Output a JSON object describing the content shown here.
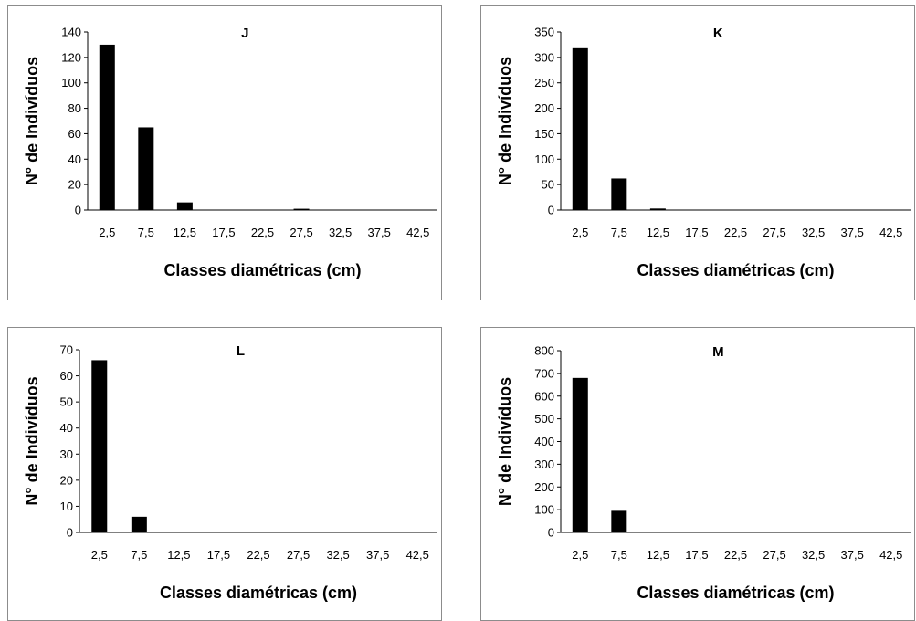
{
  "chart_data": [
    {
      "type": "bar",
      "title": "J",
      "xlabel": "Classes diamétricas (cm)",
      "ylabel": "N° de Indivíduos",
      "categories": [
        "2,5",
        "7,5",
        "12,5",
        "17,5",
        "22,5",
        "27,5",
        "32,5",
        "37,5",
        "42,5"
      ],
      "values": [
        130,
        65,
        6,
        0,
        0,
        1,
        0,
        0,
        0
      ],
      "ylim": [
        0,
        140
      ],
      "yticks": [
        0,
        20,
        40,
        60,
        80,
        100,
        120,
        140
      ],
      "bar_color": "#000000",
      "grid": false
    },
    {
      "type": "bar",
      "title": "K",
      "xlabel": "Classes diamétricas (cm)",
      "ylabel": "N° de Indivíduos",
      "categories": [
        "2,5",
        "7,5",
        "12,5",
        "17,5",
        "22,5",
        "27,5",
        "32,5",
        "37,5",
        "42,5"
      ],
      "values": [
        318,
        62,
        3,
        0,
        0,
        0,
        0,
        0,
        0
      ],
      "ylim": [
        0,
        350
      ],
      "yticks": [
        0,
        50,
        100,
        150,
        200,
        250,
        300,
        350
      ],
      "bar_color": "#000000",
      "grid": false
    },
    {
      "type": "bar",
      "title": "L",
      "xlabel": "Classes diamétricas (cm)",
      "ylabel": "N° de Indivíduos",
      "categories": [
        "2,5",
        "7,5",
        "12,5",
        "17,5",
        "22,5",
        "27,5",
        "32,5",
        "37,5",
        "42,5"
      ],
      "values": [
        66,
        6,
        0,
        0,
        0,
        0,
        0,
        0,
        0
      ],
      "ylim": [
        0,
        70
      ],
      "yticks": [
        0,
        10,
        20,
        30,
        40,
        50,
        60,
        70
      ],
      "bar_color": "#000000",
      "grid": false
    },
    {
      "type": "bar",
      "title": "M",
      "xlabel": "Classes diamétricas (cm)",
      "ylabel": "N° de Indivíduos",
      "categories": [
        "2,5",
        "7,5",
        "12,5",
        "17,5",
        "22,5",
        "27,5",
        "32,5",
        "37,5",
        "42,5"
      ],
      "values": [
        680,
        95,
        0,
        0,
        0,
        0,
        0,
        0,
        0
      ],
      "ylim": [
        0,
        800
      ],
      "yticks": [
        0,
        100,
        200,
        300,
        400,
        500,
        600,
        700,
        800
      ],
      "bar_color": "#000000",
      "grid": false
    }
  ]
}
